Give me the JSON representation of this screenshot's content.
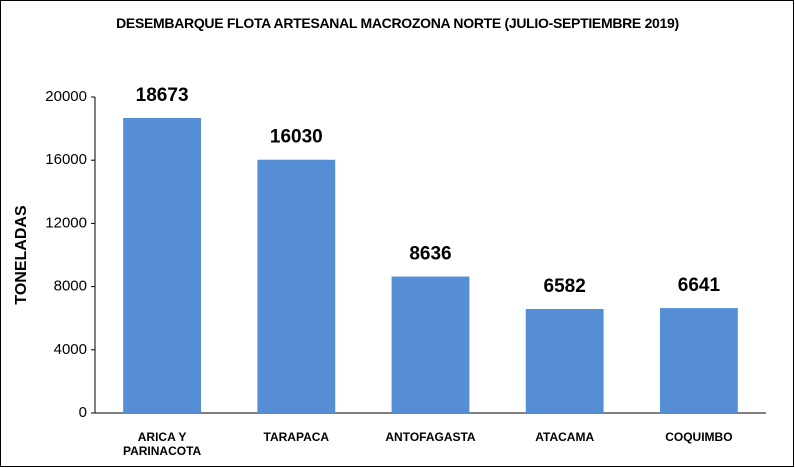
{
  "chart_data": {
    "type": "bar",
    "title": "DESEMBARQUE FLOTA ARTESANAL MACROZONA NORTE (JULIO-SEPTIEMBRE 2019)",
    "y_label": "TONELADAS",
    "categories": [
      "ARICA Y PARINACOTA",
      "TARAPACA",
      "ANTOFAGASTA",
      "ATACAMA",
      "COQUIMBO"
    ],
    "values": [
      18673,
      16030,
      8636,
      6582,
      6641
    ],
    "color": "#558ed5",
    "ylim": [
      0,
      20000
    ],
    "yticks": [
      0,
      4000,
      8000,
      12000,
      16000,
      20000
    ],
    "grid": false
  }
}
